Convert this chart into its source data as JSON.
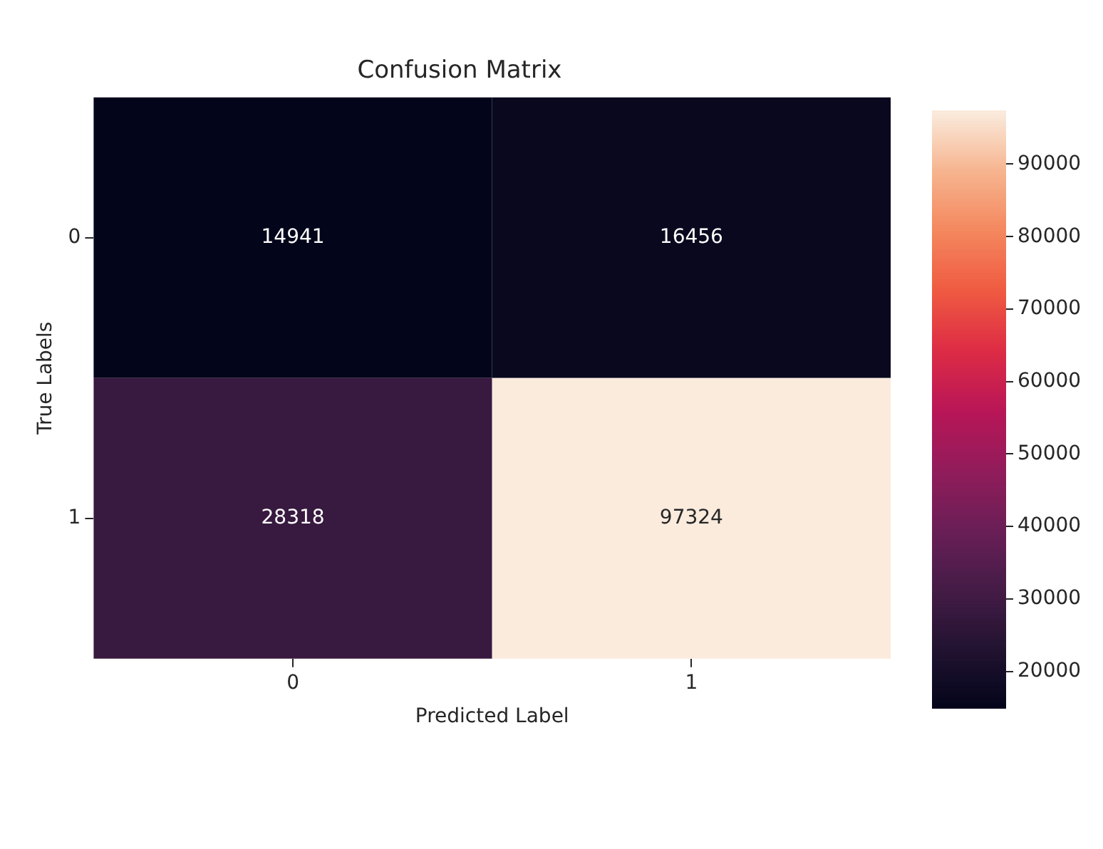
{
  "chart_data": {
    "type": "heatmap",
    "title": "Confusion Matrix",
    "xlabel": "Predicted Label",
    "ylabel": "True Labels",
    "categories": [
      "0",
      "1"
    ],
    "y_categories": [
      "0",
      "1"
    ],
    "cells": [
      [
        14941,
        16456
      ],
      [
        28318,
        97324
      ]
    ],
    "data_labels": true,
    "clim": [
      14941,
      97324
    ],
    "cticks": [
      20000,
      30000,
      40000,
      50000,
      60000,
      70000,
      80000,
      90000
    ]
  }
}
